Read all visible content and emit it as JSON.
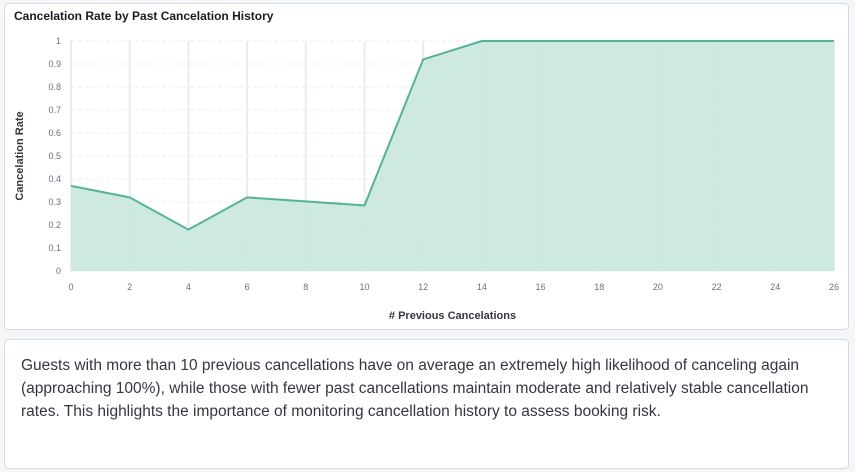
{
  "panel": {
    "title": "Cancelation Rate by Past Cancelation History"
  },
  "chart_data": {
    "type": "area",
    "title": "Cancelation Rate by Past Cancelation History",
    "xlabel": "# Previous Cancelations",
    "ylabel": "Cancelation Rate",
    "x": [
      0,
      2,
      4,
      6,
      10,
      12,
      14,
      26
    ],
    "y": [
      0.37,
      0.32,
      0.18,
      0.32,
      0.285,
      0.92,
      1.0,
      1.0
    ],
    "xlim": [
      0,
      26
    ],
    "ylim": [
      0,
      1
    ],
    "xticks": [
      0,
      2,
      4,
      6,
      8,
      10,
      12,
      14,
      16,
      18,
      20,
      22,
      24,
      26
    ],
    "yticks": [
      0,
      0.1,
      0.2,
      0.3,
      0.4,
      0.5,
      0.6,
      0.7,
      0.8,
      0.9,
      1
    ],
    "grid": true,
    "colors": {
      "line": "#54b399",
      "fill": "#cbe8dd",
      "grid": "#e9edf2"
    }
  },
  "summary": {
    "text": "Guests with more than 10 previous cancellations have on average an extremely high likelihood of canceling again (approaching 100%), while those with fewer past cancellations maintain moderate and relatively stable cancellation rates. This highlights the importance of monitoring cancellation history to assess booking risk."
  }
}
